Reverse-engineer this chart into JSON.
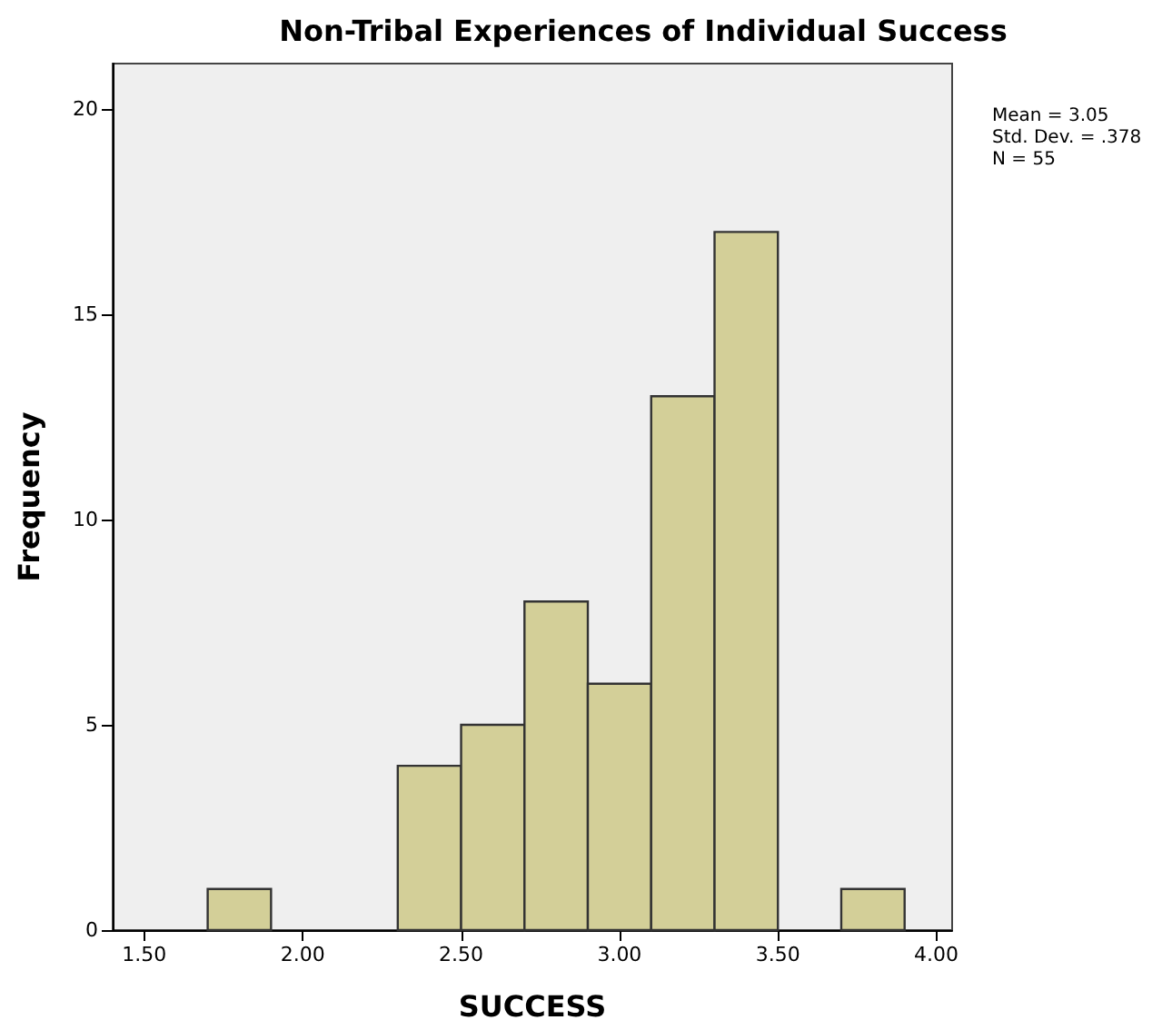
{
  "chart_data": {
    "type": "histogram",
    "title": "Non-Tribal Experiences of Individual Success",
    "xlabel": "SUCCESS",
    "ylabel": "Frequency",
    "bins": [
      1.7,
      1.9,
      2.1,
      2.3,
      2.5,
      2.7,
      2.9,
      3.1,
      3.3,
      3.5,
      3.7,
      3.9
    ],
    "values": [
      1,
      0,
      0,
      4,
      5,
      8,
      6,
      13,
      17,
      0,
      1
    ],
    "color": "#d3cf98",
    "xlim": [
      1.4,
      4.05
    ],
    "xticks": [
      {
        "value": 1.5,
        "label": "1.50"
      },
      {
        "value": 2,
        "label": "2.00"
      },
      {
        "value": 2.5,
        "label": "2.50"
      },
      {
        "value": 3,
        "label": "3.00"
      },
      {
        "value": 3.5,
        "label": "3.50"
      },
      {
        "value": 4,
        "label": "4.00"
      }
    ],
    "ylim": [
      0,
      21.1
    ],
    "yticks": [
      0,
      5,
      10,
      15,
      20
    ],
    "annotations": [
      "Mean = 3.05",
      "Std. Dev. = .378",
      "N = 55"
    ],
    "grid": false
  }
}
